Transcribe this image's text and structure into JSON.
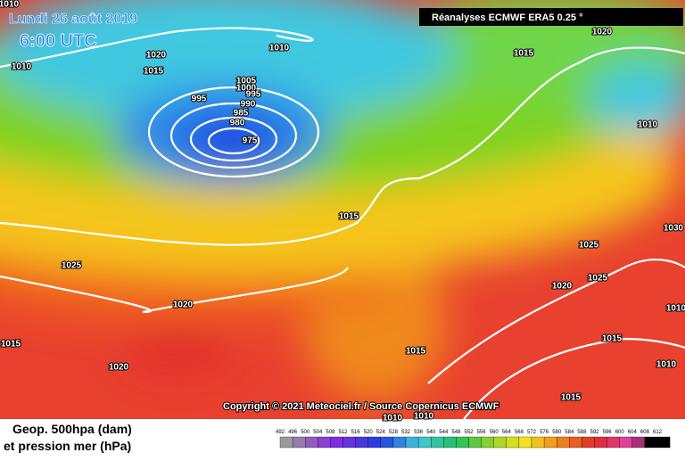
{
  "header": {
    "date": "Lundi 26 août 2019",
    "time": "6:00 UTC",
    "source": "Réanalyses ECMWF ERA5 0.25 °"
  },
  "copyright": "Copyright © 2021 Meteociel.fr / Source Copernicus ECMWF",
  "legend": {
    "title_line1": "Geop. 500hpa (dam)",
    "title_line2": "et pression mer (hPa)",
    "scale": [
      492,
      496,
      500,
      504,
      508,
      512,
      516,
      520,
      524,
      528,
      532,
      536,
      540,
      544,
      548,
      552,
      556,
      560,
      564,
      568,
      572,
      576,
      580,
      584,
      588,
      592,
      596,
      600,
      604,
      608,
      612
    ]
  },
  "isobar_labels": [
    1010,
    1010,
    1020,
    1015,
    1010,
    995,
    1005,
    1000,
    995,
    990,
    985,
    980,
    975,
    1015,
    1025,
    1020,
    1015,
    1020,
    1015,
    1020,
    1010,
    1025,
    1030,
    1020,
    1025,
    1015,
    1015,
    1010,
    1015,
    1010,
    1010,
    1010
  ]
}
